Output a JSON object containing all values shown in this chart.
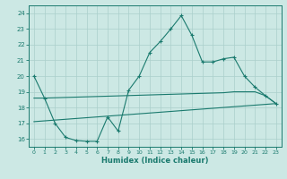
{
  "xlabel": "Humidex (Indice chaleur)",
  "background_color": "#cce8e4",
  "line_color": "#1a7a6e",
  "grid_color": "#aacfcb",
  "xlim": [
    -0.5,
    23.5
  ],
  "ylim": [
    15.5,
    24.5
  ],
  "xticks": [
    0,
    1,
    2,
    3,
    4,
    5,
    6,
    7,
    8,
    9,
    10,
    11,
    12,
    13,
    14,
    15,
    16,
    17,
    18,
    19,
    20,
    21,
    22,
    23
  ],
  "yticks": [
    16,
    17,
    18,
    19,
    20,
    21,
    22,
    23,
    24
  ],
  "line1_x": [
    0,
    1,
    2,
    3,
    4,
    5,
    6,
    7,
    8,
    9,
    10,
    11,
    12,
    13,
    14,
    15,
    16,
    17,
    18,
    19,
    20,
    21,
    22,
    23
  ],
  "line1_y": [
    20.0,
    18.6,
    17.0,
    16.1,
    15.9,
    15.85,
    15.85,
    17.4,
    16.5,
    19.1,
    20.0,
    21.5,
    22.2,
    23.0,
    23.85,
    22.6,
    20.9,
    20.9,
    21.1,
    21.2,
    20.0,
    19.3,
    18.75,
    18.25
  ],
  "line2_x": [
    0,
    1,
    2,
    3,
    4,
    5,
    6,
    7,
    8,
    9,
    10,
    11,
    12,
    13,
    14,
    15,
    16,
    17,
    18,
    19,
    20,
    21,
    22,
    23
  ],
  "line2_y": [
    18.6,
    18.6,
    18.62,
    18.64,
    18.66,
    18.68,
    18.7,
    18.72,
    18.74,
    18.76,
    18.78,
    18.8,
    18.82,
    18.84,
    18.86,
    18.88,
    18.9,
    18.92,
    18.94,
    19.0,
    19.0,
    19.0,
    18.75,
    18.25
  ],
  "line3_x": [
    0,
    1,
    2,
    3,
    4,
    5,
    6,
    7,
    8,
    9,
    10,
    11,
    12,
    13,
    14,
    15,
    16,
    17,
    18,
    19,
    20,
    21,
    22,
    23
  ],
  "line3_y": [
    17.1,
    17.15,
    17.2,
    17.25,
    17.3,
    17.35,
    17.4,
    17.45,
    17.5,
    17.55,
    17.6,
    17.65,
    17.7,
    17.75,
    17.8,
    17.85,
    17.9,
    17.95,
    18.0,
    18.05,
    18.1,
    18.15,
    18.2,
    18.25
  ]
}
